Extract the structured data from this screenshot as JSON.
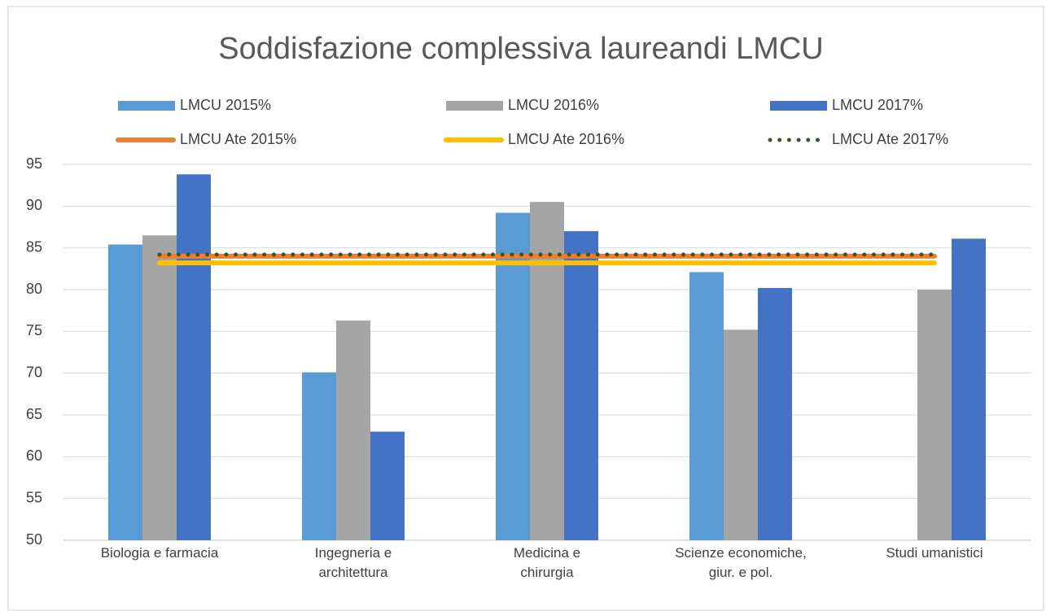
{
  "chart_data": {
    "type": "bar",
    "title": "Soddisfazione complessiva laureandi LMCU",
    "categories": [
      "Biologia e farmacia",
      "Ingegneria e architettura",
      "Medicina e chirurgia",
      "Scienze economiche, giur. e pol.",
      "Studi umanistici"
    ],
    "series": [
      {
        "name": "LMCU 2015%",
        "color": "#5b9bd5",
        "values": [
          85.4,
          70.1,
          89.2,
          82.1,
          null
        ]
      },
      {
        "name": "LMCU 2016%",
        "color": "#a5a5a5",
        "values": [
          86.5,
          76.3,
          90.5,
          75.2,
          80.0
        ]
      },
      {
        "name": "LMCU 2017%",
        "color": "#4472c4",
        "values": [
          93.8,
          63.0,
          87.0,
          80.2,
          86.1
        ]
      },
      {
        "name": "LMCU Ate 2015%",
        "color": "#ed7d31",
        "type": "line",
        "values": [
          84.0,
          84.0,
          84.0,
          84.0,
          84.0
        ]
      },
      {
        "name": "LMCU Ate 2016%",
        "color": "#ffc000",
        "type": "line",
        "values": [
          83.2,
          83.2,
          83.2,
          83.2,
          83.2
        ]
      },
      {
        "name": "LMCU Ate 2017%",
        "color": "#375623",
        "type": "line",
        "line_style": "dotted",
        "values": [
          84.2,
          84.2,
          84.2,
          84.2,
          84.2
        ]
      }
    ],
    "ylim": [
      50,
      95
    ],
    "yticks": [
      50,
      55,
      60,
      65,
      70,
      75,
      80,
      85,
      90,
      95
    ],
    "grid": true,
    "legend": "top"
  }
}
